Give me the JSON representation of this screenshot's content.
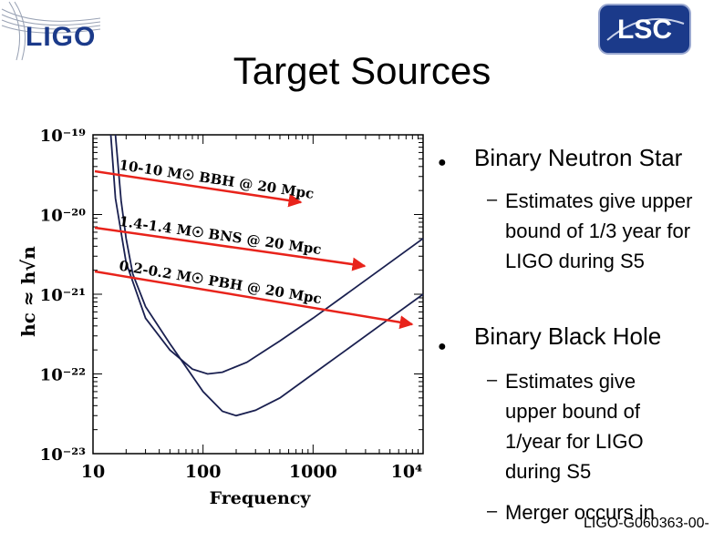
{
  "logos": {
    "left_text": "LIGO",
    "right_text": "LSC",
    "right_color": "#1b3a8a"
  },
  "slide": {
    "title": "Target Sources",
    "footer": "LIGO-G060363-00-"
  },
  "bullets": [
    {
      "text": "Binary Neutron Star",
      "subs": [
        "Estimates give upper bound of 1/3 year for LIGO during S5"
      ]
    },
    {
      "text": "Binary Black Hole",
      "subs": [
        "Estimates give upper bound of 1/year for LIGO during S5",
        "Merger occurs in"
      ]
    }
  ],
  "chart_data": {
    "type": "line",
    "xlabel": "Frequency",
    "ylabel": "hc ≈ h√n",
    "xscale": "log",
    "yscale": "log",
    "xlim": [
      10,
      10000
    ],
    "ylim": [
      1e-23,
      1e-19
    ],
    "x_ticks": [
      "10",
      "100",
      "1000",
      "10⁴"
    ],
    "y_ticks": [
      "10⁻¹⁹",
      "10⁻²⁰",
      "10⁻²¹",
      "10⁻²²",
      "10⁻²³"
    ],
    "series": [
      {
        "color": "#1a2050",
        "x": [
          14.5,
          16,
          20,
          30,
          50,
          80,
          110,
          150,
          250,
          500,
          1000,
          2000,
          5000,
          10000
        ],
        "y": [
          1e-19,
          1.6e-20,
          2.5e-21,
          5e-22,
          2e-22,
          1.15e-22,
          1e-22,
          1.05e-22,
          1.4e-22,
          2.6e-22,
          5e-22,
          1e-21,
          2.5e-21,
          5e-21
        ]
      },
      {
        "color": "#1a2050",
        "x": [
          16,
          18,
          20,
          23,
          30,
          50,
          100,
          150,
          200,
          300,
          500,
          1000,
          2000,
          5000,
          10000
        ],
        "y": [
          1e-19,
          1.5e-20,
          5e-21,
          1.8e-21,
          7e-22,
          2.4e-22,
          6e-23,
          3.4e-23,
          3e-23,
          3.5e-23,
          5e-23,
          1e-22,
          2e-22,
          5e-22,
          1e-21
        ]
      }
    ],
    "arrows": [
      {
        "label": "10-10 M☉ BBH @ 20 Mpc",
        "color": "#e8231b"
      },
      {
        "label": "1.4-1.4 M☉ BNS @ 20 Mpc",
        "color": "#e8231b"
      },
      {
        "label": "0.2-0.2 M☉ PBH @ 20 Mpc",
        "color": "#e8231b"
      }
    ]
  }
}
